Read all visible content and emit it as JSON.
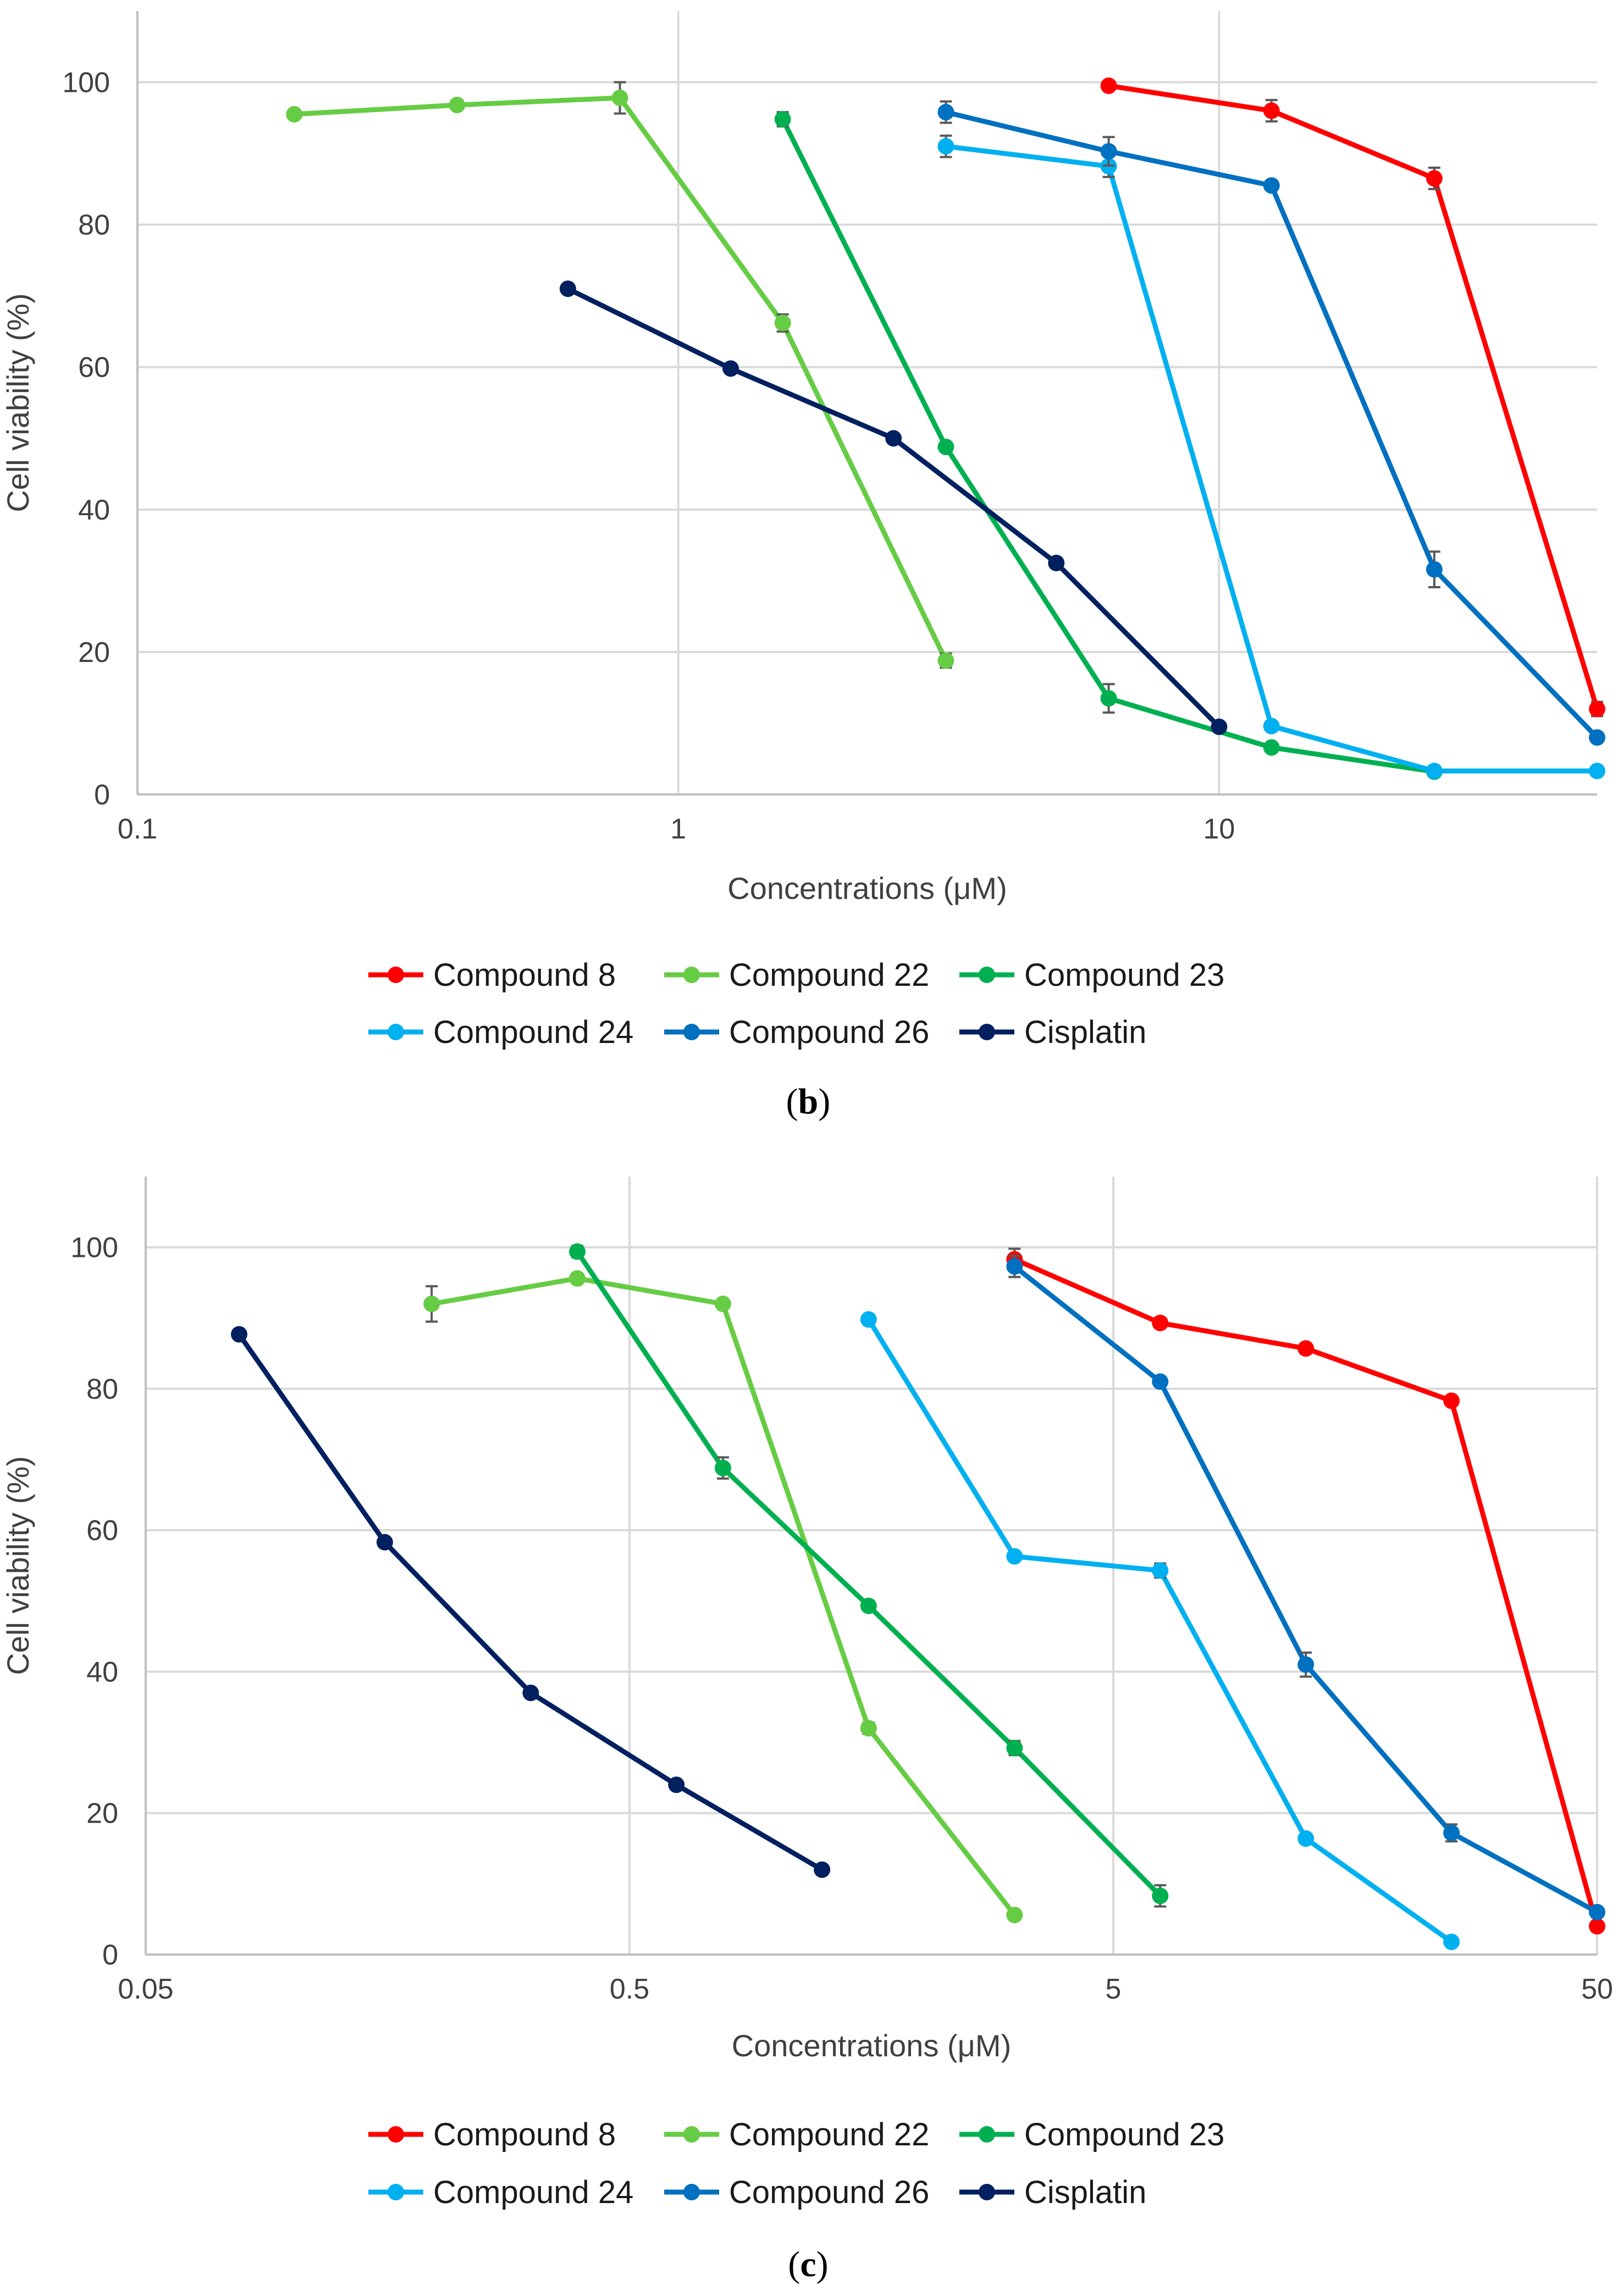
{
  "chart_data": [
    {
      "type": "line",
      "panel": "b",
      "caption_letter": "b",
      "xscale": "log",
      "xlim": [
        0.1,
        50
      ],
      "ylim": [
        0,
        110
      ],
      "xticks": [
        0.1,
        1,
        10
      ],
      "xtick_labels": [
        "0.1",
        "1",
        "10"
      ],
      "yticks": [
        0,
        20,
        40,
        60,
        80,
        100
      ],
      "ytick_labels": [
        "0",
        "20",
        "40",
        "60",
        "80",
        "100"
      ],
      "xlabel": "Concentrations (μM)",
      "ylabel": "Cell viability (%)",
      "legend_position": "bottom",
      "series": [
        {
          "name": "Compound 8",
          "color": "#ff0000",
          "x": [
            6.25,
            12.5,
            25,
            50
          ],
          "y": [
            99.5,
            96,
            86.5,
            12
          ],
          "err": [
            0.5,
            1.5,
            1.5,
            1
          ]
        },
        {
          "name": "Compound 22",
          "color": "#66cc44",
          "x": [
            0.195,
            0.39,
            0.78,
            1.56,
            3.125
          ],
          "y": [
            95.5,
            96.8,
            97.8,
            66.2,
            18.8
          ],
          "err": [
            0.5,
            0.5,
            2.2,
            1.2,
            1
          ]
        },
        {
          "name": "Compound 23",
          "color": "#00b050",
          "x": [
            1.56,
            3.125,
            6.25,
            12.5,
            25
          ],
          "y": [
            94.8,
            48.8,
            13.5,
            6.6,
            3.2
          ],
          "err": [
            1,
            0.5,
            2,
            0.5,
            0.3
          ]
        },
        {
          "name": "Compound 24",
          "color": "#00b0f0",
          "x": [
            3.125,
            6.25,
            12.5,
            25,
            50
          ],
          "y": [
            91,
            88.2,
            9.6,
            3.3,
            3.3
          ],
          "err": [
            1.5,
            1.5,
            0.5,
            0.3,
            0.3
          ]
        },
        {
          "name": "Compound 26",
          "color": "#0070c0",
          "x": [
            3.125,
            6.25,
            12.5,
            25,
            50
          ],
          "y": [
            95.8,
            90.3,
            85.5,
            31.6,
            8
          ],
          "err": [
            1.5,
            2,
            0.5,
            2.5,
            0.5
          ]
        },
        {
          "name": "Cisplatin",
          "color": "#002060",
          "x": [
            0.625,
            1.25,
            2.5,
            5,
            10
          ],
          "y": [
            71,
            59.8,
            50,
            32.5,
            9.5
          ],
          "err": [
            0,
            0,
            0,
            0,
            0
          ]
        }
      ]
    },
    {
      "type": "line",
      "panel": "c",
      "caption_letter": "c",
      "xscale": "log",
      "xlim": [
        0.05,
        50
      ],
      "ylim": [
        0,
        110
      ],
      "xticks": [
        0.05,
        0.5,
        5,
        50
      ],
      "xtick_labels": [
        "0.05",
        "0.5",
        "5",
        "50"
      ],
      "yticks": [
        0,
        20,
        40,
        60,
        80,
        100
      ],
      "ytick_labels": [
        "0",
        "20",
        "40",
        "60",
        "80",
        "100"
      ],
      "xlabel": "Concentrations (μM)",
      "ylabel": "Cell viability (%)",
      "legend_position": "bottom",
      "series": [
        {
          "name": "Compound 8",
          "color": "#ff0000",
          "x": [
            3.125,
            6.25,
            12.5,
            25,
            50
          ],
          "y": [
            98.3,
            89.3,
            85.7,
            78.3,
            4
          ],
          "err": [
            1.5,
            0.5,
            0.7,
            0.5,
            0.5
          ]
        },
        {
          "name": "Compound 22",
          "color": "#66cc44",
          "x": [
            0.195,
            0.39,
            0.78,
            1.56,
            3.125
          ],
          "y": [
            92,
            95.6,
            92,
            32,
            5.6
          ],
          "err": [
            2.5,
            0.5,
            0.5,
            0.8,
            0.3
          ]
        },
        {
          "name": "Compound 23",
          "color": "#00b050",
          "x": [
            0.39,
            0.78,
            1.56,
            3.125,
            6.25
          ],
          "y": [
            99.4,
            68.8,
            49.3,
            29.2,
            8.3
          ],
          "err": [
            0.8,
            1.5,
            0.5,
            1,
            1.5
          ]
        },
        {
          "name": "Compound 24",
          "color": "#00b0f0",
          "x": [
            1.56,
            3.125,
            6.25,
            12.5,
            25
          ],
          "y": [
            89.8,
            56.3,
            54.3,
            16.4,
            1.8
          ],
          "err": [
            0.5,
            0.5,
            1,
            0.5,
            0.3
          ]
        },
        {
          "name": "Compound 26",
          "color": "#0070c0",
          "x": [
            3.125,
            6.25,
            12.5,
            25,
            50
          ],
          "y": [
            97.3,
            81,
            41,
            17.2,
            6
          ],
          "err": [
            1.5,
            0.5,
            1.7,
            1.2,
            0.5
          ]
        },
        {
          "name": "Cisplatin",
          "color": "#002060",
          "x": [
            0.078,
            0.156,
            0.3125,
            0.625,
            1.25
          ],
          "y": [
            87.7,
            58.3,
            37,
            24,
            12
          ],
          "err": [
            0,
            0,
            0,
            0,
            0
          ]
        }
      ]
    }
  ]
}
